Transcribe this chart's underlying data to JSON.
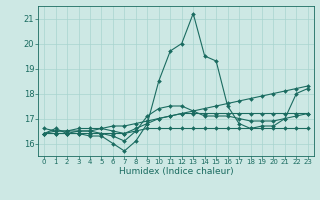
{
  "title": "",
  "xlabel": "Humidex (Indice chaleur)",
  "ylabel": "",
  "background_color": "#cde8e4",
  "grid_color": "#a8d4cf",
  "line_color": "#1a6b60",
  "xlim": [
    -0.5,
    23.5
  ],
  "ylim": [
    15.5,
    21.5
  ],
  "yticks": [
    16,
    17,
    18,
    19,
    20,
    21
  ],
  "xtick_labels": [
    "0",
    "1",
    "2",
    "3",
    "4",
    "5",
    "6",
    "7",
    "8",
    "9",
    "10",
    "11",
    "12",
    "13",
    "14",
    "15",
    "16",
    "17",
    "18",
    "19",
    "20",
    "21",
    "22",
    "23"
  ],
  "series": {
    "line1": [
      16.4,
      16.6,
      16.4,
      16.4,
      16.3,
      16.3,
      16.0,
      15.7,
      16.1,
      16.8,
      18.5,
      19.7,
      20.0,
      21.2,
      19.5,
      19.3,
      17.5,
      16.8,
      16.6,
      16.6,
      16.6,
      16.6,
      16.6,
      16.6
    ],
    "line2": [
      16.4,
      16.4,
      16.4,
      16.4,
      16.4,
      16.4,
      16.4,
      16.4,
      16.6,
      16.8,
      17.0,
      17.1,
      17.2,
      17.2,
      17.2,
      17.2,
      17.2,
      17.2,
      17.2,
      17.2,
      17.2,
      17.2,
      17.2,
      17.2
    ],
    "line3": [
      16.4,
      16.4,
      16.4,
      16.5,
      16.5,
      16.4,
      16.3,
      16.1,
      16.5,
      17.1,
      17.4,
      17.5,
      17.5,
      17.3,
      17.1,
      17.1,
      17.1,
      17.0,
      16.9,
      16.9,
      16.9,
      17.0,
      17.1,
      17.2
    ],
    "line4": [
      16.4,
      16.5,
      16.5,
      16.6,
      16.6,
      16.6,
      16.7,
      16.7,
      16.8,
      16.9,
      17.0,
      17.1,
      17.2,
      17.3,
      17.4,
      17.5,
      17.6,
      17.7,
      17.8,
      17.9,
      18.0,
      18.1,
      18.2,
      18.3
    ],
    "line5": [
      16.6,
      16.5,
      16.5,
      16.5,
      16.5,
      16.6,
      16.5,
      16.4,
      16.5,
      16.6,
      16.6,
      16.6,
      16.6,
      16.6,
      16.6,
      16.6,
      16.6,
      16.6,
      16.6,
      16.7,
      16.7,
      17.0,
      18.0,
      18.2
    ]
  },
  "marker": "D",
  "markersize": 2.0,
  "linewidth": 0.8
}
